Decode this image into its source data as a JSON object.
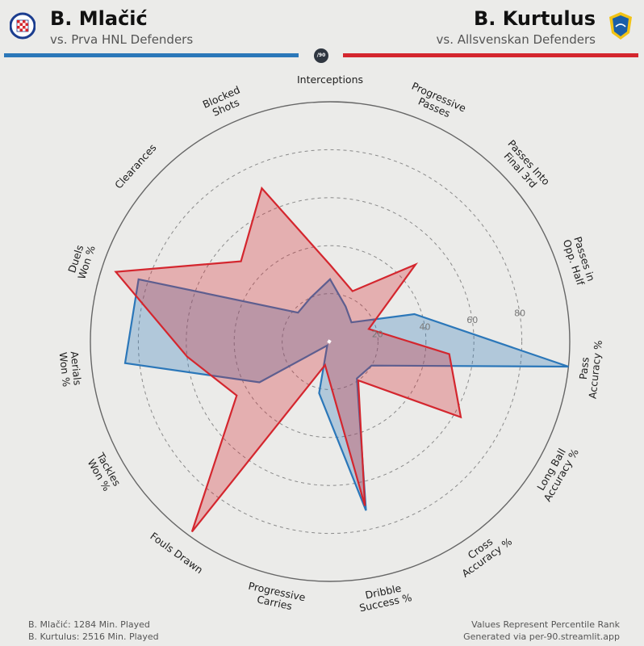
{
  "header": {
    "player1_name": "B. Mlačić",
    "player1_subtitle": "vs. Prva HNL Defenders",
    "player2_name": "B. Kurtulus",
    "player2_subtitle": "vs. Allsvenskan Defenders",
    "center_badge": "/90"
  },
  "colors": {
    "player1": "#2b77b9",
    "player2": "#d4262e"
  },
  "chart_data": {
    "type": "radar",
    "ylim": [
      0,
      100
    ],
    "rings": [
      20,
      40,
      60,
      80,
      100
    ],
    "ring_labels": [
      "20",
      "40",
      "60",
      "80"
    ],
    "categories": [
      "Interceptions",
      "Progressive Passes",
      "Passes Into Final 3rd",
      "Passes in Opp. Half",
      "Pass Accuracy %",
      "Long Ball Accuracy %",
      "Cross Accuracy %",
      "Dribble Success %",
      "Progressive Carries",
      "Fouls Drawn",
      "Tackles Won %",
      "Aerials Won %",
      "Duels Won %",
      "Clearances",
      "Blocked Shots"
    ],
    "series": [
      {
        "name": "B. Mlačić",
        "values": [
          26,
          16,
          12,
          37,
          100,
          20,
          19,
          72,
          22,
          2,
          34,
          86,
          84,
          18,
          20
        ]
      },
      {
        "name": "B. Kurtulus",
        "values": [
          32,
          23,
          48,
          17,
          50,
          63,
          20,
          70,
          10,
          98,
          45,
          60,
          94,
          50,
          70
        ]
      }
    ]
  },
  "footer": {
    "left_line1": "B. Mlačić: 1284 Min. Played",
    "left_line2": "B. Kurtulus: 2516 Min. Played",
    "right_line1": "Values Represent Percentile Rank",
    "right_line2": "Generated via per-90.streamlit.app"
  }
}
